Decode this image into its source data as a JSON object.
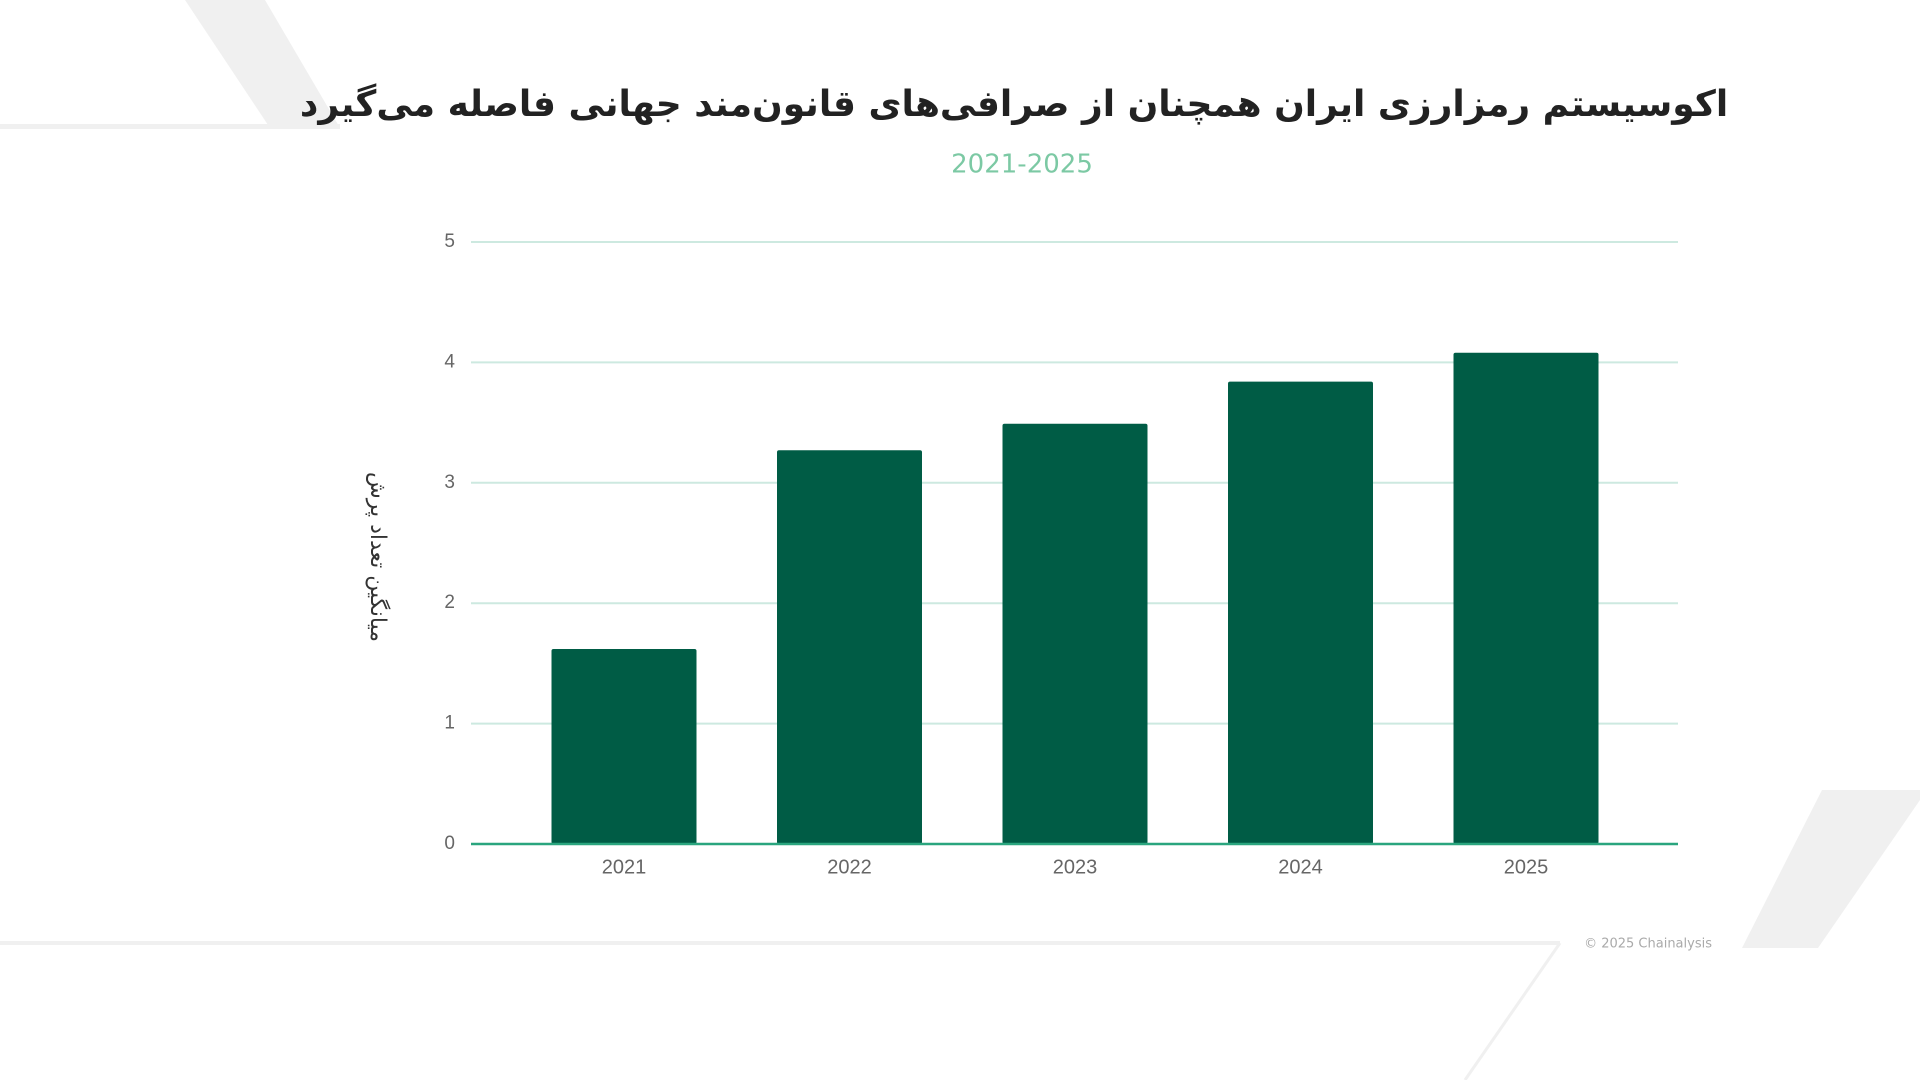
{
  "chart_data": {
    "type": "bar",
    "title": "اکوسیستم رمزارزی ایران همچنان از صرافی‌های قانون‌مند جهانی فاصله می‌گیرد",
    "subtitle": "2021-2025",
    "y_label": "میانگین تعداد پرش",
    "categories": [
      "2021",
      "2022",
      "2023",
      "2024",
      "2025"
    ],
    "values": [
      1.62,
      3.27,
      3.49,
      3.84,
      4.08
    ],
    "color": "#005c45",
    "ylim": [
      0,
      5
    ],
    "yticks": [
      0,
      1,
      2,
      3,
      4,
      5
    ],
    "grid": true,
    "footer": "© 2025 Chainalysis"
  }
}
